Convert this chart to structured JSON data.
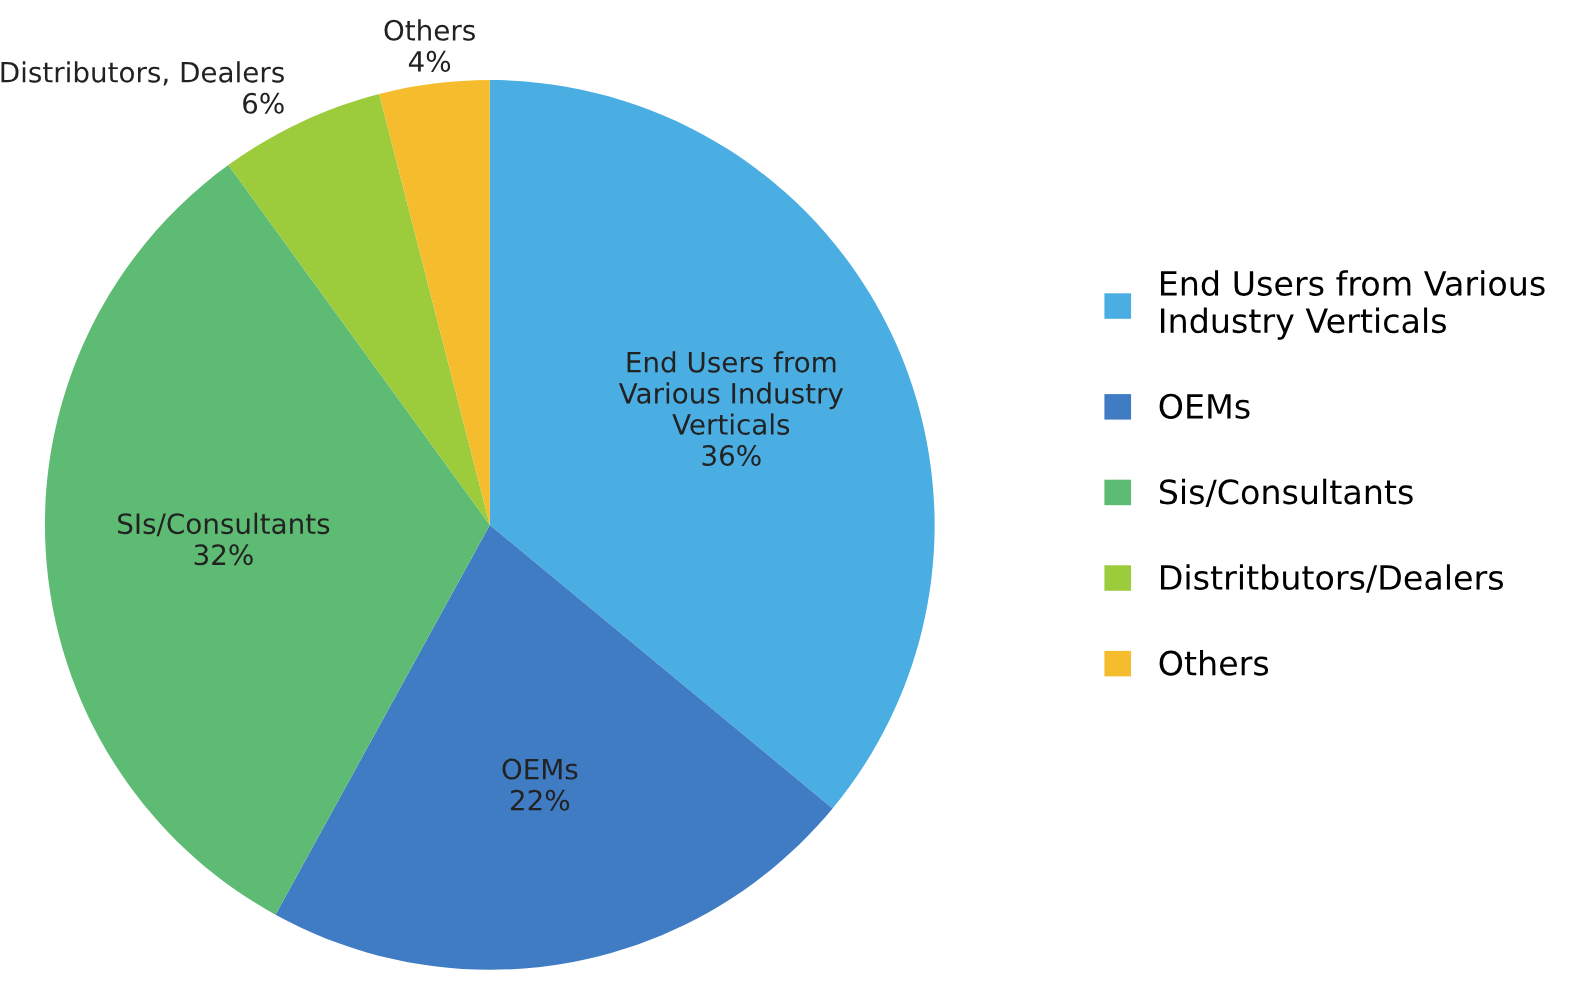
{
  "chart_data": {
    "type": "pie",
    "categories": [
      "End Users from Various\nIndustry Verticals",
      "OEMs",
      "Sis/Consultants",
      "Distritbutors/Dealers",
      "Others"
    ],
    "values": [
      36,
      22,
      32,
      6,
      4
    ],
    "colors": [
      "#4aaee3",
      "#3f7cc4",
      "#5dbb73",
      "#9ccb3b",
      "#f5bc2e"
    ],
    "value_labels": [
      "End Users from\nVarious Industry\nVerticals\n36%",
      "OEMs\n22%",
      "SIs/Consultants\n32%",
      "Distributors, Dealers\n6%",
      "Others\n4%"
    ],
    "legend": "right"
  }
}
